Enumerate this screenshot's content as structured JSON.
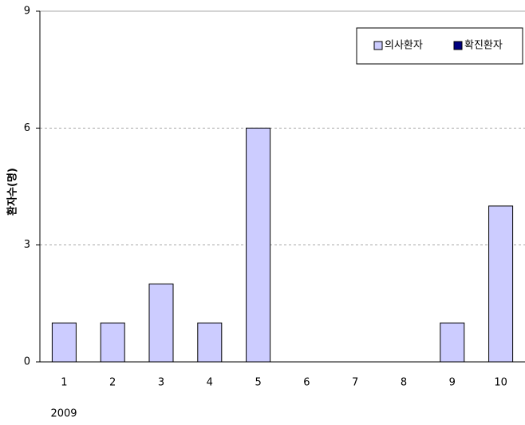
{
  "chart_data": {
    "type": "bar",
    "y_label": "환자수(명)",
    "categories": [
      "1",
      "2",
      "3",
      "4",
      "5",
      "6",
      "7",
      "8",
      "9",
      "10"
    ],
    "x_sublabel": "2009",
    "series": [
      {
        "name": "의사환자",
        "color": "#ccccff",
        "values": [
          1,
          1,
          2,
          1,
          6,
          0,
          0,
          0,
          1,
          4
        ]
      },
      {
        "name": "확진환자",
        "color": "#000080",
        "values": [
          0,
          0,
          0,
          0,
          0,
          0,
          0,
          0,
          0,
          0
        ]
      }
    ],
    "ylim": [
      0,
      9
    ],
    "yticks": [
      0,
      3,
      6,
      9
    ],
    "grid": true,
    "legend": "upper right"
  }
}
